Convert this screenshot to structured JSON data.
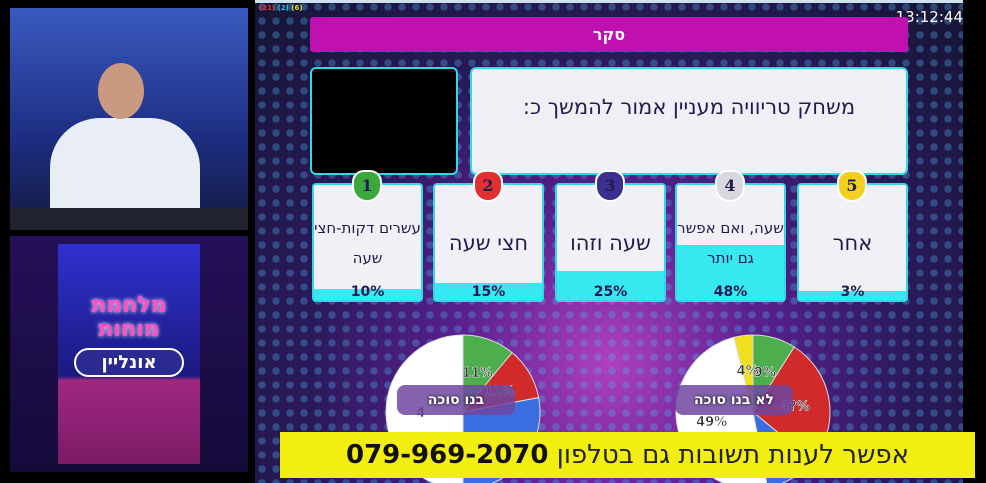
{
  "status": {
    "counters": [
      {
        "text": "(21)",
        "color": "#e83020"
      },
      {
        "text": "(2)",
        "color": "#20c8e8"
      },
      {
        "text": "(6)",
        "color": "#e0e020"
      }
    ],
    "clock": "13:12:44"
  },
  "header": {
    "title": "סקר"
  },
  "question": {
    "text": "משחק טריוויה מעניין אמור להמשך כ:"
  },
  "answers": [
    {
      "number": "1",
      "label": "עשרים דקות-חצי שעה",
      "percent": "10%",
      "value": 10,
      "badge_color": "#3aa83a"
    },
    {
      "number": "2",
      "label": "חצי שעה",
      "percent": "15%",
      "value": 15,
      "badge_color": "#e03030"
    },
    {
      "number": "3",
      "label": "שעה וזהו",
      "percent": "25%",
      "value": 25,
      "badge_color": "#3a3090"
    },
    {
      "number": "4",
      "label": "שעה, ואם אפשר גם יותר",
      "percent": "48%",
      "value": 48,
      "badge_color": "#d8d8e0"
    },
    {
      "number": "5",
      "label": "אחר",
      "percent": "3%",
      "value": 3,
      "badge_color": "#f0d020"
    }
  ],
  "chart_data": [
    {
      "type": "pie",
      "title": "בנו סוכה",
      "slices": [
        {
          "label": "11%",
          "value": 11,
          "color": "#4cae4c"
        },
        {
          "label": "11%",
          "value": 11,
          "color": "#d02a2a"
        },
        {
          "label": "",
          "value": 28,
          "color": "#3a6ee0"
        },
        {
          "label": "4",
          "value": 50,
          "color": "#ffffff"
        }
      ]
    },
    {
      "type": "pie",
      "title": "לא בנו סוכה",
      "slices": [
        {
          "label": "9%",
          "value": 9,
          "color": "#4cae4c"
        },
        {
          "label": "4?%",
          "value": 27,
          "color": "#d02a2a"
        },
        {
          "label": "",
          "value": 11,
          "color": "#3a6ee0"
        },
        {
          "label": "49%",
          "value": 49,
          "color": "#ffffff"
        },
        {
          "label": "4%",
          "value": 4,
          "color": "#f0e020"
        }
      ]
    }
  ],
  "banner": {
    "text": "אפשר לענות תשובות גם בטלפון",
    "phone": "079-969-2070"
  },
  "logo": {
    "line1": "מלחמת מוחות",
    "line2": "אונליין"
  }
}
